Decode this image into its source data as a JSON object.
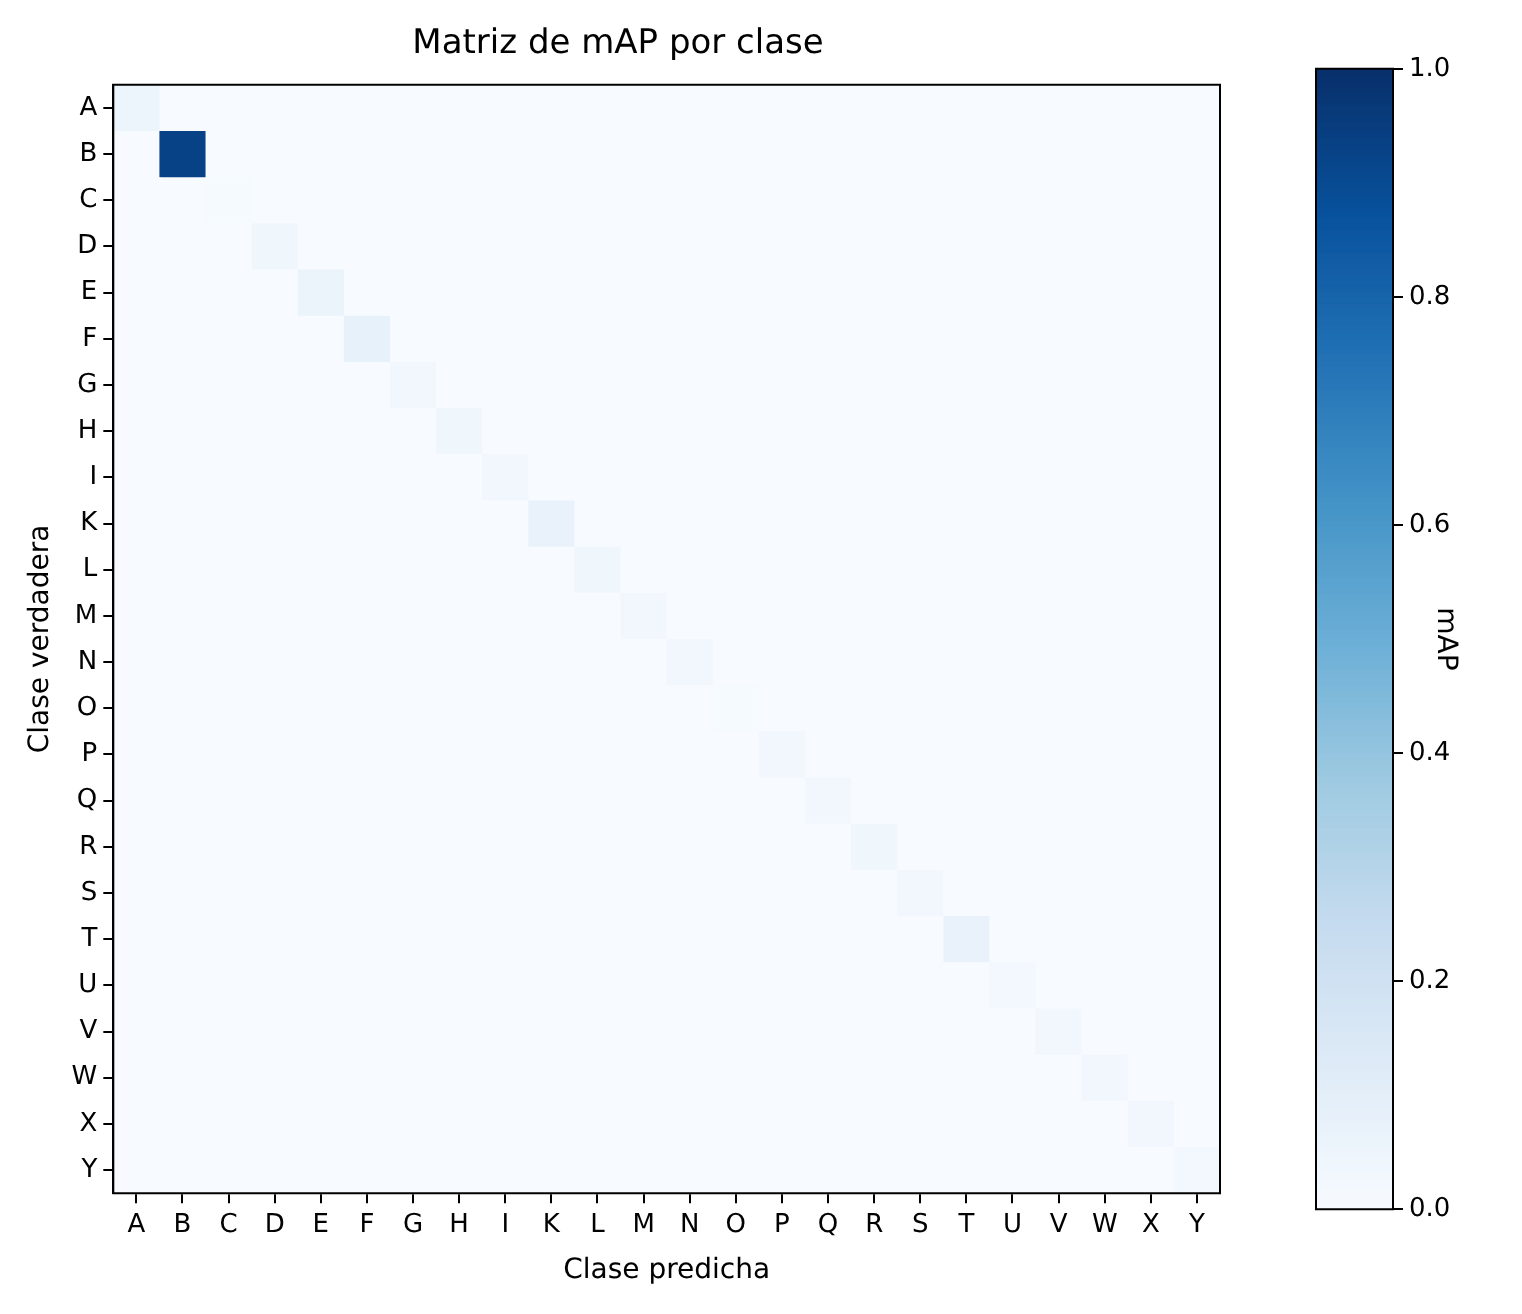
{
  "chart_data": {
    "type": "heatmap",
    "title": "Matriz de mAP por clase",
    "xlabel": "Clase predicha",
    "ylabel": "Clase verdadera",
    "clabel": "mAP",
    "categories": [
      "A",
      "B",
      "C",
      "D",
      "E",
      "F",
      "G",
      "H",
      "I",
      "K",
      "L",
      "M",
      "N",
      "O",
      "P",
      "Q",
      "R",
      "S",
      "T",
      "U",
      "V",
      "W",
      "X",
      "Y"
    ],
    "y_categories": [
      "A",
      "B",
      "C",
      "D",
      "E",
      "F",
      "G",
      "H",
      "I",
      "K",
      "L",
      "M",
      "N",
      "O",
      "P",
      "Q",
      "R",
      "S",
      "T",
      "U",
      "V",
      "W",
      "X",
      "Y"
    ],
    "cells": [
      [
        0.05,
        0,
        0,
        0,
        0,
        0,
        0,
        0,
        0,
        0,
        0,
        0,
        0,
        0,
        0,
        0,
        0,
        0,
        0,
        0,
        0,
        0,
        0,
        0
      ],
      [
        0,
        0.93,
        0,
        0,
        0,
        0,
        0,
        0,
        0,
        0,
        0,
        0,
        0,
        0,
        0,
        0,
        0,
        0,
        0,
        0,
        0,
        0,
        0,
        0
      ],
      [
        0,
        0,
        0.01,
        0,
        0,
        0,
        0,
        0,
        0,
        0,
        0,
        0,
        0,
        0,
        0,
        0,
        0,
        0,
        0,
        0,
        0,
        0,
        0,
        0
      ],
      [
        0,
        0,
        0,
        0.04,
        0,
        0,
        0,
        0,
        0,
        0,
        0,
        0,
        0,
        0,
        0,
        0,
        0,
        0,
        0,
        0,
        0,
        0,
        0,
        0
      ],
      [
        0,
        0,
        0,
        0,
        0.06,
        0,
        0,
        0,
        0,
        0,
        0,
        0,
        0,
        0,
        0,
        0,
        0,
        0,
        0,
        0,
        0,
        0,
        0,
        0
      ],
      [
        0,
        0,
        0,
        0,
        0,
        0.08,
        0,
        0,
        0,
        0,
        0,
        0,
        0,
        0,
        0,
        0,
        0,
        0,
        0,
        0,
        0,
        0,
        0,
        0
      ],
      [
        0,
        0,
        0,
        0,
        0,
        0,
        0.03,
        0,
        0,
        0,
        0,
        0,
        0,
        0,
        0,
        0,
        0,
        0,
        0,
        0,
        0,
        0,
        0,
        0
      ],
      [
        0,
        0,
        0,
        0,
        0,
        0,
        0,
        0.04,
        0,
        0,
        0,
        0,
        0,
        0,
        0,
        0,
        0,
        0,
        0,
        0,
        0,
        0,
        0,
        0
      ],
      [
        0,
        0,
        0,
        0,
        0,
        0,
        0,
        0,
        0.03,
        0,
        0,
        0,
        0,
        0,
        0,
        0,
        0,
        0,
        0,
        0,
        0,
        0,
        0,
        0
      ],
      [
        0,
        0,
        0,
        0,
        0,
        0,
        0,
        0,
        0,
        0.07,
        0,
        0,
        0,
        0,
        0,
        0,
        0,
        0,
        0,
        0,
        0,
        0,
        0,
        0
      ],
      [
        0,
        0,
        0,
        0,
        0,
        0,
        0,
        0,
        0,
        0,
        0.04,
        0,
        0,
        0,
        0,
        0,
        0,
        0,
        0,
        0,
        0,
        0,
        0,
        0
      ],
      [
        0,
        0,
        0,
        0,
        0,
        0,
        0,
        0,
        0,
        0,
        0,
        0.03,
        0,
        0,
        0,
        0,
        0,
        0,
        0,
        0,
        0,
        0,
        0,
        0
      ],
      [
        0,
        0,
        0,
        0,
        0,
        0,
        0,
        0,
        0,
        0,
        0,
        0,
        0.03,
        0,
        0,
        0,
        0,
        0,
        0,
        0,
        0,
        0,
        0,
        0
      ],
      [
        0,
        0,
        0,
        0,
        0,
        0,
        0,
        0,
        0,
        0,
        0,
        0,
        0,
        0.01,
        0,
        0,
        0,
        0,
        0,
        0,
        0,
        0,
        0,
        0
      ],
      [
        0,
        0,
        0,
        0,
        0,
        0,
        0,
        0,
        0,
        0,
        0,
        0,
        0,
        0,
        0.03,
        0,
        0,
        0,
        0,
        0,
        0,
        0,
        0,
        0
      ],
      [
        0,
        0,
        0,
        0,
        0,
        0,
        0,
        0,
        0,
        0,
        0,
        0,
        0,
        0,
        0,
        0.03,
        0,
        0,
        0,
        0,
        0,
        0,
        0,
        0
      ],
      [
        0,
        0,
        0,
        0,
        0,
        0,
        0,
        0,
        0,
        0,
        0,
        0,
        0,
        0,
        0,
        0,
        0.04,
        0,
        0,
        0,
        0,
        0,
        0,
        0
      ],
      [
        0,
        0,
        0,
        0,
        0,
        0,
        0,
        0,
        0,
        0,
        0,
        0,
        0,
        0,
        0,
        0,
        0,
        0.03,
        0,
        0,
        0,
        0,
        0,
        0
      ],
      [
        0,
        0,
        0,
        0,
        0,
        0,
        0,
        0,
        0,
        0,
        0,
        0,
        0,
        0,
        0,
        0,
        0,
        0,
        0.07,
        0,
        0,
        0,
        0,
        0
      ],
      [
        0,
        0,
        0,
        0,
        0,
        0,
        0,
        0,
        0,
        0,
        0,
        0,
        0,
        0,
        0,
        0,
        0,
        0,
        0,
        0.02,
        0,
        0,
        0,
        0
      ],
      [
        0,
        0,
        0,
        0,
        0,
        0,
        0,
        0,
        0,
        0,
        0,
        0,
        0,
        0,
        0,
        0,
        0,
        0,
        0,
        0,
        0.03,
        0,
        0,
        0
      ],
      [
        0,
        0,
        0,
        0,
        0,
        0,
        0,
        0,
        0,
        0,
        0,
        0,
        0,
        0,
        0,
        0,
        0,
        0,
        0,
        0,
        0,
        0.03,
        0,
        0
      ],
      [
        0,
        0,
        0,
        0,
        0,
        0,
        0,
        0,
        0,
        0,
        0,
        0,
        0,
        0,
        0,
        0,
        0,
        0,
        0,
        0,
        0,
        0,
        0.03,
        0
      ],
      [
        0,
        0,
        0,
        0,
        0,
        0,
        0,
        0,
        0,
        0,
        0,
        0,
        0,
        0,
        0,
        0,
        0,
        0,
        0,
        0,
        0,
        0,
        0,
        0.02
      ]
    ],
    "clim": [
      0,
      1
    ],
    "cticks": [
      {
        "value": 0,
        "label": "0.0"
      },
      {
        "value": 0.2,
        "label": "0.2"
      },
      {
        "value": 0.4,
        "label": "0.4"
      },
      {
        "value": 0.6,
        "label": "0.6"
      },
      {
        "value": 0.8,
        "label": "0.8"
      },
      {
        "value": 1,
        "label": "1.0"
      }
    ]
  }
}
